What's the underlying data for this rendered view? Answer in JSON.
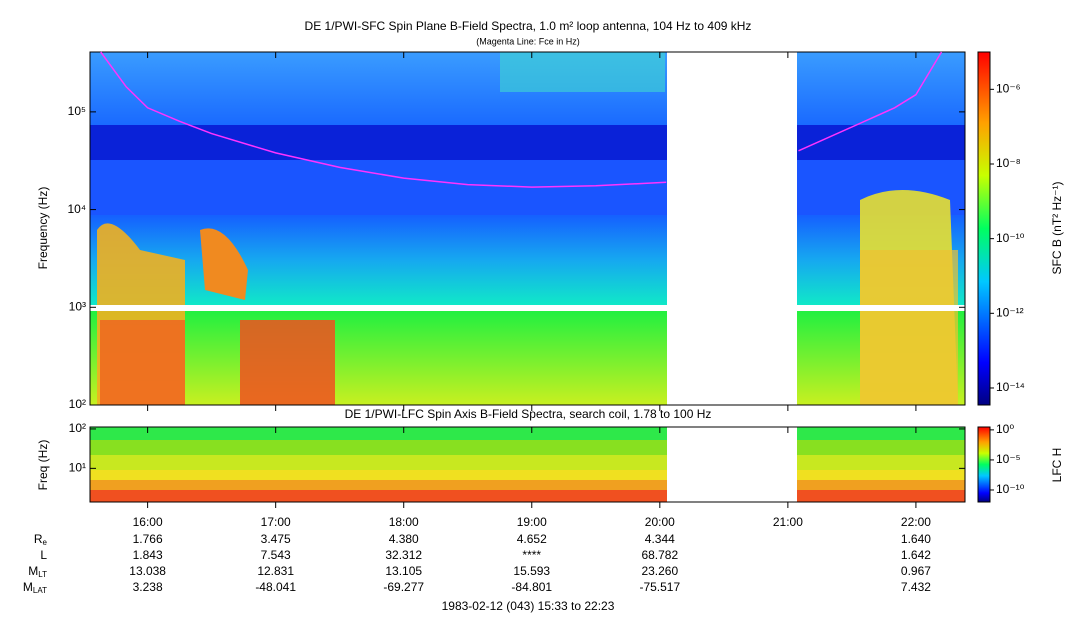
{
  "chart_data": [
    {
      "type": "spectrogram",
      "title": "DE 1/PWI-SFC  Spin Plane B-Field Spectra, 1.0 m² loop antenna, 104 Hz to 409 kHz",
      "subtitle": "(Magenta Line: Fce in Hz)",
      "y_label": "Frequency (Hz)",
      "log_y": true,
      "ylim": [
        100,
        410000
      ],
      "yticks": [
        {
          "value": 100,
          "label": "10²"
        },
        {
          "value": 1000,
          "label": "10³"
        },
        {
          "value": 10000,
          "label": "10⁴"
        },
        {
          "value": 100000,
          "label": "10⁵"
        }
      ],
      "xlim": [
        "15:33",
        "22:23"
      ],
      "xticks": [
        "16:00",
        "17:00",
        "18:00",
        "19:00",
        "20:00",
        "21:00",
        "22:00"
      ],
      "colorbar": {
        "label": "SFC B (nT² Hz⁻¹)",
        "log": true,
        "clim": [
          3.5e-15,
          1e-05
        ],
        "ticks": [
          {
            "value": 1e-06,
            "label": "10⁻⁶"
          },
          {
            "value": 1e-08,
            "label": "10⁻⁸"
          },
          {
            "value": 1e-10,
            "label": "10⁻¹⁰"
          },
          {
            "value": 1e-12,
            "label": "10⁻¹²"
          },
          {
            "value": 1e-14,
            "label": "10⁻¹⁴"
          }
        ]
      },
      "series": [
        {
          "color": "#ff33ff",
          "x": [
            "15:38",
            "15:50",
            "16:00",
            "16:15",
            "16:30",
            "17:00",
            "17:30",
            "18:00",
            "18:30",
            "19:00",
            "19:30",
            "20:03",
            "20:30",
            "21:05",
            "21:30",
            "21:50",
            "22:00",
            "22:12"
          ],
          "values": [
            410000,
            180000,
            110000,
            80000,
            60000,
            38000,
            27000,
            21000,
            18000,
            17000,
            17500,
            19000,
            null,
            40000,
            70000,
            110000,
            150000,
            410000
          ]
        }
      ]
    },
    {
      "type": "spectrogram",
      "title": "DE 1/PWI-LFC  Spin Axis B-Field Spectra, search coil, 1.78 to 100 Hz",
      "y_label": "Freq (Hz)",
      "log_y": true,
      "ylim": [
        1.4,
        112
      ],
      "yticks": [
        {
          "value": 10,
          "label": "10¹"
        },
        {
          "value": 100,
          "label": "10²"
        }
      ],
      "xlim": [
        "15:33",
        "22:23"
      ],
      "xticks": [
        "16:00",
        "17:00",
        "18:00",
        "19:00",
        "20:00",
        "21:00",
        "22:00"
      ],
      "colorbar": {
        "label": "LFC H",
        "log": true,
        "clim": [
          1e-12,
          3
        ],
        "ticks": [
          {
            "value": 1,
            "label": "10⁰"
          },
          {
            "value": 1e-05,
            "label": "10⁻⁵"
          },
          {
            "value": 1e-10,
            "label": "10⁻¹⁰"
          }
        ]
      }
    }
  ],
  "ephemeris": {
    "rows": [
      {
        "label": "R",
        "sub": "e",
        "values": [
          "1.766",
          "3.475",
          "4.380",
          "4.652",
          "4.344",
          null,
          "1.640"
        ]
      },
      {
        "label": "L",
        "values": [
          "1.843",
          "7.543",
          "32.312",
          "****",
          "68.782",
          null,
          "1.642"
        ]
      },
      {
        "label": "M",
        "sub": "LT",
        "values": [
          "13.038",
          "12.831",
          "13.105",
          "15.593",
          "23.260",
          null,
          "0.967"
        ]
      },
      {
        "label": "M",
        "sub": "LAT",
        "values": [
          "3.238",
          "-48.041",
          "-69.277",
          "-84.801",
          "-75.517",
          null,
          "7.432"
        ]
      }
    ],
    "footer": "1983-02-12 (043) 15:33 to 22:23"
  }
}
